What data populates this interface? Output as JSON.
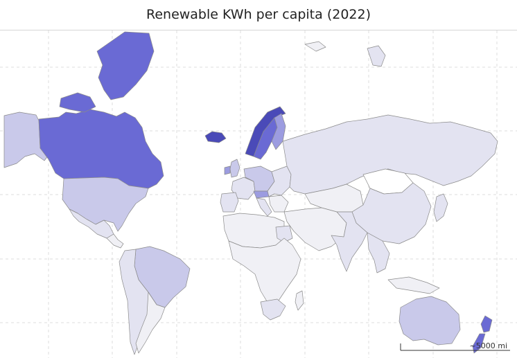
{
  "title": "Renewable KWh per capita (2022)",
  "scale_label": "~5000 mi",
  "colors": {
    "very_high": "#6a6ad4",
    "high": "#9c9ce0",
    "medium": "#c9c9ea",
    "low": "#e3e3f1",
    "very_low": "#f0f0f5",
    "border": "#8a8a8a",
    "grid": "#d9d9d9"
  }
}
